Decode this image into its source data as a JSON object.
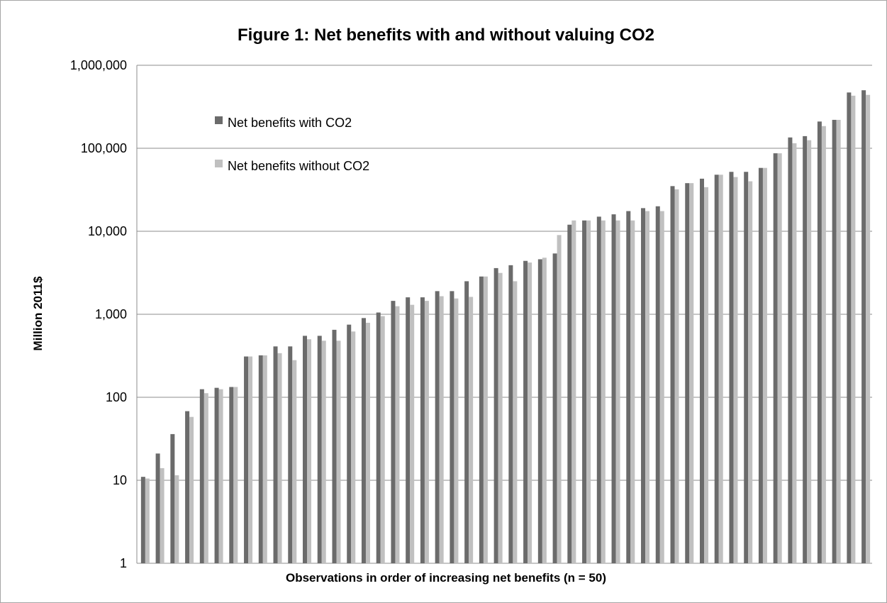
{
  "chart_data": {
    "type": "bar",
    "title": "Figure 1: Net benefits with and without valuing CO2",
    "xlabel": "Observations in order of increasing net benefits (n = 50)",
    "ylabel": "Million 2011$",
    "yscale": "log",
    "ylim": [
      1,
      1000000
    ],
    "yticks": [
      1,
      10,
      100,
      1000,
      10000,
      100000,
      1000000
    ],
    "ytick_labels": [
      "1",
      "10",
      "100",
      "1,000",
      "10,000",
      "100,000",
      "1,000,000"
    ],
    "grid": true,
    "legend_position": "top-left",
    "series": [
      {
        "name": "Net benefits with CO2",
        "color": "#6b6b6b",
        "values": [
          11,
          21,
          36,
          68,
          125,
          130,
          133,
          310,
          320,
          410,
          410,
          550,
          550,
          650,
          750,
          900,
          1050,
          1450,
          1600,
          1600,
          1900,
          1900,
          2500,
          2850,
          3600,
          3900,
          4400,
          4600,
          5400,
          12000,
          13500,
          15000,
          16000,
          17500,
          19000,
          20000,
          35000,
          38000,
          43000,
          48000,
          52000,
          52000,
          58000,
          87000,
          135000,
          140000,
          210000,
          220000,
          470000,
          500000
        ]
      },
      {
        "name": "Net benefits without CO2",
        "color": "#c0c0c0",
        "values": [
          10.5,
          14,
          11.5,
          58,
          112,
          125,
          133,
          310,
          320,
          340,
          280,
          500,
          480,
          480,
          620,
          790,
          950,
          1250,
          1300,
          1450,
          1650,
          1550,
          1620,
          2850,
          3150,
          2500,
          4200,
          4800,
          9000,
          13500,
          13500,
          13500,
          13500,
          13500,
          17500,
          17500,
          32000,
          38000,
          34000,
          48000,
          45000,
          40000,
          58000,
          87000,
          115000,
          125000,
          185000,
          220000,
          430000,
          440000
        ]
      }
    ]
  }
}
